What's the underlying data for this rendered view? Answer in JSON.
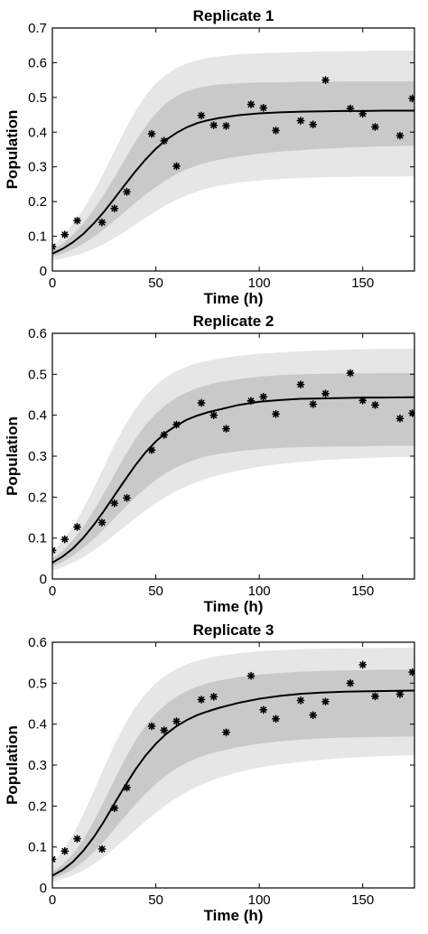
{
  "colors": {
    "outer_band": "#e6e6e6",
    "inner_band": "#c9c9c9",
    "line": "#000000",
    "markers": "#000000",
    "axes": "#000000"
  },
  "chart_data": [
    {
      "type": "line",
      "title": "Replicate 1",
      "xlabel": "Time (h)",
      "ylabel": "Population",
      "xlim": [
        0,
        175
      ],
      "ylim": [
        0,
        0.7
      ],
      "xticks": [
        0,
        50,
        100,
        150
      ],
      "xtick_labels": [
        "0",
        "50",
        "100",
        "150"
      ],
      "yticks": [
        0,
        0.1,
        0.2,
        0.3,
        0.4,
        0.5,
        0.6,
        0.7
      ],
      "ytick_labels": [
        "0",
        "0.1",
        "0.2",
        "0.3",
        "0.4",
        "0.5",
        "0.6",
        "0.7"
      ],
      "grid": false,
      "fit": {
        "x": [
          0,
          5,
          10,
          15,
          20,
          25,
          30,
          35,
          40,
          45,
          50,
          55,
          60,
          65,
          70,
          75,
          80,
          90,
          100,
          110,
          120,
          130,
          140,
          150,
          160,
          175
        ],
        "y": [
          0.05,
          0.064,
          0.083,
          0.107,
          0.137,
          0.171,
          0.209,
          0.248,
          0.286,
          0.321,
          0.352,
          0.378,
          0.398,
          0.414,
          0.426,
          0.434,
          0.44,
          0.449,
          0.454,
          0.457,
          0.459,
          0.46,
          0.461,
          0.461,
          0.462,
          0.462
        ]
      },
      "inner_band": {
        "lower": [
          0.04,
          0.05,
          0.063,
          0.079,
          0.098,
          0.12,
          0.145,
          0.17,
          0.196,
          0.22,
          0.242,
          0.262,
          0.279,
          0.293,
          0.304,
          0.313,
          0.32,
          0.33,
          0.338,
          0.344,
          0.348,
          0.352,
          0.355,
          0.357,
          0.359,
          0.361
        ],
        "upper": [
          0.06,
          0.079,
          0.105,
          0.137,
          0.176,
          0.221,
          0.27,
          0.321,
          0.372,
          0.416,
          0.454,
          0.484,
          0.504,
          0.518,
          0.527,
          0.533,
          0.537,
          0.541,
          0.543,
          0.544,
          0.545,
          0.545,
          0.546,
          0.546,
          0.546,
          0.546
        ]
      },
      "outer_band": {
        "lower": [
          0.03,
          0.036,
          0.043,
          0.052,
          0.064,
          0.078,
          0.095,
          0.113,
          0.133,
          0.153,
          0.172,
          0.19,
          0.205,
          0.218,
          0.229,
          0.238,
          0.245,
          0.255,
          0.261,
          0.265,
          0.268,
          0.27,
          0.271,
          0.272,
          0.272,
          0.273
        ],
        "upper": [
          0.075,
          0.1,
          0.135,
          0.178,
          0.229,
          0.285,
          0.345,
          0.405,
          0.46,
          0.505,
          0.54,
          0.566,
          0.585,
          0.598,
          0.607,
          0.614,
          0.618,
          0.624,
          0.627,
          0.629,
          0.631,
          0.632,
          0.633,
          0.634,
          0.635,
          0.635
        ]
      },
      "points": {
        "x": [
          0,
          6,
          12,
          24,
          30,
          36,
          48,
          54,
          60,
          72,
          78,
          84,
          96,
          102,
          108,
          120,
          126,
          132,
          144,
          150,
          156,
          168,
          174
        ],
        "y": [
          0.07,
          0.105,
          0.145,
          0.14,
          0.18,
          0.228,
          0.395,
          0.375,
          0.302,
          0.448,
          0.42,
          0.418,
          0.48,
          0.47,
          0.405,
          0.433,
          0.422,
          0.55,
          0.468,
          0.453,
          0.415,
          0.39,
          0.497
        ]
      }
    },
    {
      "type": "line",
      "title": "Replicate 2",
      "xlabel": "Time (h)",
      "ylabel": "Population",
      "xlim": [
        0,
        175
      ],
      "ylim": [
        0,
        0.6
      ],
      "xticks": [
        0,
        50,
        100,
        150
      ],
      "xtick_labels": [
        "0",
        "50",
        "100",
        "150"
      ],
      "yticks": [
        0,
        0.1,
        0.2,
        0.3,
        0.4,
        0.5,
        0.6
      ],
      "ytick_labels": [
        "0",
        "0.1",
        "0.2",
        "0.3",
        "0.4",
        "0.5",
        "0.6"
      ],
      "grid": false,
      "fit": {
        "x": [
          0,
          5,
          10,
          15,
          20,
          25,
          30,
          35,
          40,
          45,
          50,
          55,
          60,
          65,
          70,
          75,
          80,
          90,
          100,
          110,
          120,
          130,
          140,
          150,
          160,
          175
        ],
        "y": [
          0.04,
          0.055,
          0.075,
          0.101,
          0.132,
          0.167,
          0.204,
          0.241,
          0.277,
          0.309,
          0.336,
          0.358,
          0.375,
          0.389,
          0.399,
          0.407,
          0.413,
          0.425,
          0.433,
          0.437,
          0.44,
          0.441,
          0.442,
          0.443,
          0.443,
          0.444
        ]
      },
      "inner_band": {
        "lower": [
          0.03,
          0.042,
          0.057,
          0.076,
          0.098,
          0.122,
          0.148,
          0.174,
          0.199,
          0.222,
          0.242,
          0.259,
          0.273,
          0.284,
          0.293,
          0.3,
          0.305,
          0.312,
          0.317,
          0.32,
          0.322,
          0.323,
          0.324,
          0.324,
          0.325,
          0.325
        ],
        "upper": [
          0.05,
          0.069,
          0.095,
          0.128,
          0.167,
          0.21,
          0.255,
          0.3,
          0.341,
          0.376,
          0.404,
          0.426,
          0.443,
          0.456,
          0.466,
          0.474,
          0.48,
          0.488,
          0.494,
          0.498,
          0.5,
          0.501,
          0.502,
          0.502,
          0.503,
          0.503
        ]
      },
      "outer_band": {
        "lower": [
          0.02,
          0.029,
          0.04,
          0.054,
          0.07,
          0.088,
          0.108,
          0.128,
          0.148,
          0.167,
          0.185,
          0.201,
          0.215,
          0.227,
          0.237,
          0.246,
          0.253,
          0.265,
          0.274,
          0.281,
          0.286,
          0.29,
          0.293,
          0.295,
          0.297,
          0.299
        ],
        "upper": [
          0.065,
          0.092,
          0.128,
          0.172,
          0.222,
          0.275,
          0.327,
          0.374,
          0.414,
          0.447,
          0.473,
          0.493,
          0.508,
          0.519,
          0.527,
          0.533,
          0.538,
          0.545,
          0.55,
          0.553,
          0.556,
          0.558,
          0.56,
          0.561,
          0.562,
          0.563
        ]
      },
      "points": {
        "x": [
          0,
          6,
          12,
          24,
          30,
          36,
          48,
          54,
          60,
          72,
          78,
          84,
          96,
          102,
          108,
          120,
          126,
          132,
          144,
          150,
          156,
          168,
          174
        ],
        "y": [
          0.07,
          0.097,
          0.127,
          0.138,
          0.185,
          0.198,
          0.315,
          0.352,
          0.377,
          0.43,
          0.4,
          0.367,
          0.435,
          0.445,
          0.403,
          0.475,
          0.427,
          0.453,
          0.503,
          0.436,
          0.425,
          0.392,
          0.405
        ]
      }
    },
    {
      "type": "line",
      "title": "Replicate 3",
      "xlabel": "Time (h)",
      "ylabel": "Population",
      "xlim": [
        0,
        175
      ],
      "ylim": [
        0,
        0.6
      ],
      "xticks": [
        0,
        50,
        100,
        150
      ],
      "xtick_labels": [
        "0",
        "50",
        "100",
        "150"
      ],
      "yticks": [
        0,
        0.1,
        0.2,
        0.3,
        0.4,
        0.5,
        0.6
      ],
      "ytick_labels": [
        "0",
        "0.1",
        "0.2",
        "0.3",
        "0.4",
        "0.5",
        "0.6"
      ],
      "grid": false,
      "fit": {
        "x": [
          0,
          5,
          10,
          15,
          20,
          25,
          30,
          35,
          40,
          45,
          50,
          55,
          60,
          65,
          70,
          75,
          80,
          90,
          100,
          110,
          120,
          130,
          140,
          150,
          160,
          175
        ],
        "y": [
          0.03,
          0.044,
          0.064,
          0.091,
          0.124,
          0.163,
          0.206,
          0.248,
          0.288,
          0.323,
          0.352,
          0.376,
          0.395,
          0.41,
          0.422,
          0.431,
          0.439,
          0.452,
          0.462,
          0.469,
          0.474,
          0.477,
          0.479,
          0.48,
          0.481,
          0.482
        ]
      },
      "inner_band": {
        "lower": [
          0.022,
          0.032,
          0.046,
          0.064,
          0.087,
          0.114,
          0.144,
          0.174,
          0.203,
          0.23,
          0.254,
          0.275,
          0.292,
          0.306,
          0.317,
          0.326,
          0.333,
          0.344,
          0.352,
          0.358,
          0.362,
          0.365,
          0.367,
          0.368,
          0.369,
          0.37
        ],
        "upper": [
          0.04,
          0.057,
          0.083,
          0.118,
          0.162,
          0.212,
          0.264,
          0.314,
          0.359,
          0.396,
          0.426,
          0.449,
          0.467,
          0.481,
          0.492,
          0.5,
          0.506,
          0.515,
          0.521,
          0.525,
          0.528,
          0.53,
          0.531,
          0.532,
          0.533,
          0.533
        ]
      },
      "outer_band": {
        "lower": [
          0.015,
          0.022,
          0.031,
          0.043,
          0.058,
          0.076,
          0.097,
          0.119,
          0.141,
          0.163,
          0.184,
          0.203,
          0.22,
          0.235,
          0.248,
          0.259,
          0.268,
          0.283,
          0.294,
          0.302,
          0.308,
          0.313,
          0.317,
          0.32,
          0.322,
          0.324
        ],
        "upper": [
          0.06,
          0.09,
          0.13,
          0.18,
          0.236,
          0.294,
          0.35,
          0.399,
          0.44,
          0.474,
          0.5,
          0.52,
          0.535,
          0.546,
          0.555,
          0.561,
          0.566,
          0.573,
          0.578,
          0.581,
          0.583,
          0.584,
          0.585,
          0.586,
          0.586,
          0.587
        ]
      },
      "points": {
        "x": [
          0,
          6,
          12,
          24,
          30,
          36,
          48,
          54,
          60,
          72,
          78,
          84,
          96,
          102,
          108,
          120,
          126,
          132,
          144,
          150,
          156,
          168,
          174
        ],
        "y": [
          0.07,
          0.09,
          0.12,
          0.095,
          0.195,
          0.245,
          0.395,
          0.385,
          0.407,
          0.46,
          0.467,
          0.38,
          0.518,
          0.435,
          0.413,
          0.458,
          0.422,
          0.455,
          0.5,
          0.545,
          0.468,
          0.473,
          0.527
        ]
      }
    }
  ]
}
